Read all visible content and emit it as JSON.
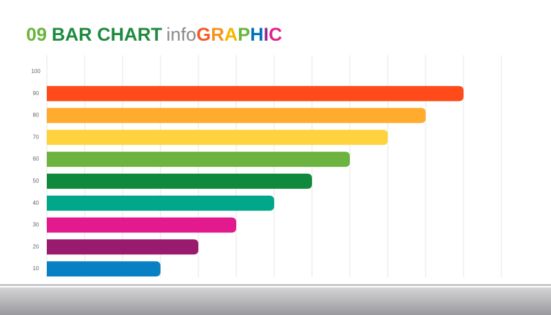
{
  "chart_data": {
    "type": "bar",
    "orientation": "horizontal",
    "title_parts": [
      {
        "text": "09",
        "color": "#6ab53c"
      },
      {
        "text": "BAR CHART",
        "color": "#1e8a3e"
      },
      {
        "text": "info",
        "color": "#8a8a8a"
      },
      {
        "text": "G",
        "color": "#f15a24"
      },
      {
        "text": "R",
        "color": "#f7931e"
      },
      {
        "text": "A",
        "color": "#f7b500"
      },
      {
        "text": "P",
        "color": "#6ab53c"
      },
      {
        "text": "H",
        "color": "#0071bc"
      },
      {
        "text": "I",
        "color": "#93278f"
      },
      {
        "text": "C",
        "color": "#e0218a"
      }
    ],
    "categories": [
      "100",
      "90",
      "80",
      "70",
      "60",
      "50",
      "40",
      "30",
      "20",
      "10"
    ],
    "values": [
      null,
      11,
      10,
      9,
      8,
      7,
      6,
      5,
      4,
      3
    ],
    "colors": [
      null,
      "#ff4b1a",
      "#ffab2e",
      "#ffd33d",
      "#6db33f",
      "#0f8a3c",
      "#00a889",
      "#e3198e",
      "#9a1a6e",
      "#0a80c4"
    ],
    "xlim": [
      0,
      12
    ],
    "xticks": [
      0,
      1,
      2,
      3,
      4,
      5,
      6,
      7,
      8,
      9,
      10,
      11,
      12
    ],
    "grid": true
  }
}
